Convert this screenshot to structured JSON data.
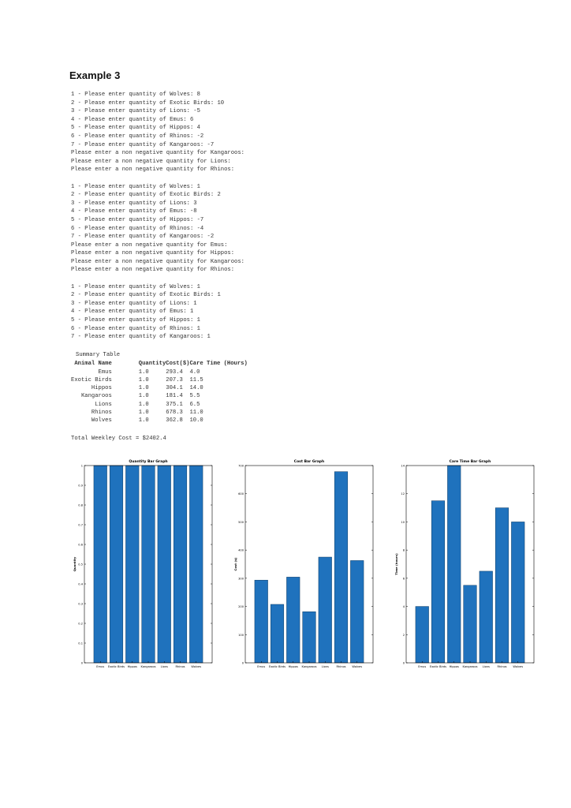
{
  "heading": "Example 3",
  "console_blocks": [
    [
      "1 - Please enter quantity of Wolves: 8",
      "2 - Please enter quantity of Exotic Birds: 10",
      "3 - Please enter quantity of Lions: -5",
      "4 - Please enter quantity of Emus: 6",
      "5 - Please enter quantity of Hippos: 4",
      "6 - Please enter quantity of Rhinos: -2",
      "7 - Please enter quantity of Kangaroos: -7",
      "Please enter a non negative quantity for Kangaroos:",
      "Please enter a non negative quantity for Lions:",
      "Please enter a non negative quantity for Rhinos:"
    ],
    [
      "1 - Please enter quantity of Wolves: 1",
      "2 - Please enter quantity of Exotic Birds: 2",
      "3 - Please enter quantity of Lions: 3",
      "4 - Please enter quantity of Emus: -8",
      "5 - Please enter quantity of Hippos: -7",
      "6 - Please enter quantity of Rhinos: -4",
      "7 - Please enter quantity of Kangaroos: -2",
      "Please enter a non negative quantity for Emus:",
      "Please enter a non negative quantity for Hippos:",
      "Please enter a non negative quantity for Kangaroos:",
      "Please enter a non negative quantity for Rhinos:"
    ],
    [
      "1 - Please enter quantity of Wolves: 1",
      "2 - Please enter quantity of Exotic Birds: 1",
      "3 - Please enter quantity of Lions: 1",
      "4 - Please enter quantity of Emus: 1",
      "5 - Please enter quantity of Hippos: 1",
      "6 - Please enter quantity of Rhinos: 1",
      "7 - Please enter quantity of Kangaroos: 1"
    ]
  ],
  "summary": {
    "title": "Summary Table",
    "headers": [
      "Animal Name",
      "Quantity",
      "Cost($)",
      "Care Time (Hours)"
    ],
    "rows": [
      [
        "Emus",
        "1.0",
        "293.4",
        "4.0"
      ],
      [
        "Exotic Birds",
        "1.0",
        "207.3",
        "11.5"
      ],
      [
        "Hippos",
        "1.0",
        "304.1",
        "14.0"
      ],
      [
        "Kangaroos",
        "1.0",
        "181.4",
        "5.5"
      ],
      [
        "Lions",
        "1.0",
        "375.1",
        "6.5"
      ],
      [
        "Rhinos",
        "1.0",
        "678.3",
        "11.0"
      ],
      [
        "Wolves",
        "1.0",
        "362.8",
        "10.0"
      ]
    ],
    "total": "Total Weekley Cost = $2402.4"
  },
  "colors": {
    "bar": "#1f72bd",
    "bar_edge": "#0d3a63",
    "axis": "#000000"
  },
  "chart_data": [
    {
      "type": "bar",
      "title": "Quantity Bar Graph",
      "xlabel": "",
      "ylabel": "Quantity",
      "categories": [
        "Emus",
        "Exotic Birds",
        "Hippos",
        "Kangaroos",
        "Lions",
        "Rhinos",
        "Wolves"
      ],
      "values": [
        1,
        1,
        1,
        1,
        1,
        1,
        1
      ],
      "ylim": [
        0,
        1
      ],
      "yticks": [
        0,
        0.1,
        0.2,
        0.3,
        0.4,
        0.5,
        0.6,
        0.7,
        0.8,
        0.9,
        1
      ],
      "ytick_labels": [
        "0",
        "0.1",
        "0.2",
        "0.3",
        "0.4",
        "0.5",
        "0.6",
        "0.7",
        "0.8",
        "0.9",
        "1"
      ]
    },
    {
      "type": "bar",
      "title": "Cost Bar Graph",
      "xlabel": "",
      "ylabel": "Cost ($)",
      "categories": [
        "Emus",
        "Exotic Birds",
        "Hippos",
        "Kangaroos",
        "Lions",
        "Rhinos",
        "Wolves"
      ],
      "values": [
        293.4,
        207.3,
        304.1,
        181.4,
        375.1,
        678.3,
        362.8
      ],
      "ylim": [
        0,
        700
      ],
      "yticks": [
        0,
        100,
        200,
        300,
        400,
        500,
        600,
        700
      ],
      "ytick_labels": [
        "0",
        "100",
        "200",
        "300",
        "400",
        "500",
        "600",
        "700"
      ]
    },
    {
      "type": "bar",
      "title": "Care Time Bar Graph",
      "xlabel": "",
      "ylabel": "Time (hours)",
      "categories": [
        "Emus",
        "Exotic Birds",
        "Hippos",
        "Kangaroos",
        "Lions",
        "Rhinos",
        "Wolves"
      ],
      "values": [
        4.0,
        11.5,
        14.0,
        5.5,
        6.5,
        11.0,
        10.0
      ],
      "ylim": [
        0,
        14
      ],
      "yticks": [
        0,
        2,
        4,
        6,
        8,
        10,
        12,
        14
      ],
      "ytick_labels": [
        "0",
        "2",
        "4",
        "6",
        "8",
        "10",
        "12",
        "14"
      ]
    }
  ]
}
